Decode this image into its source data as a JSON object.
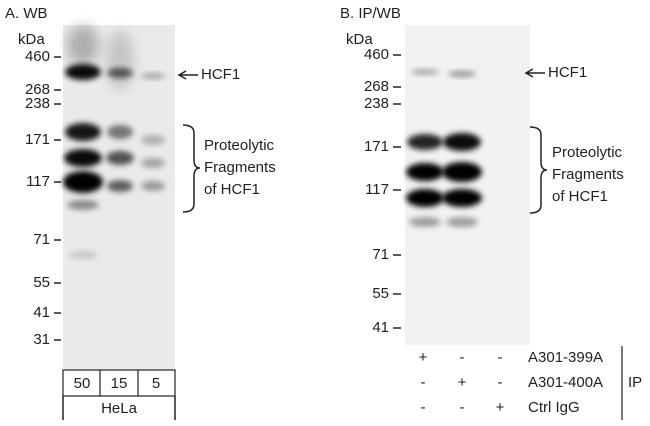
{
  "panel_a": {
    "title": "A. WB",
    "unit": "kDa",
    "markers": [
      "460",
      "268",
      "238",
      "171",
      "117",
      "71",
      "55",
      "41",
      "31"
    ],
    "arrow_label": "HCF1",
    "bracket_label": [
      "Proteolytic",
      "Fragments",
      "of HCF1"
    ],
    "lanes": [
      "50",
      "15",
      "5"
    ],
    "cell_line": "HeLa"
  },
  "panel_b": {
    "title": "B. IP/WB",
    "unit": "kDa",
    "markers": [
      "460",
      "268",
      "238",
      "171",
      "117",
      "71",
      "55",
      "41"
    ],
    "arrow_label": "HCF1",
    "bracket_label": [
      "Proteolytic",
      "Fragments",
      "of HCF1"
    ],
    "ip_rows": [
      {
        "label": "A301-399A",
        "lanes": [
          "+",
          "-",
          "-"
        ]
      },
      {
        "label": "A301-400A",
        "lanes": [
          "-",
          "+",
          "-"
        ]
      },
      {
        "label": "Ctrl IgG",
        "lanes": [
          "-",
          "-",
          "+"
        ]
      }
    ],
    "group_label": "IP"
  }
}
